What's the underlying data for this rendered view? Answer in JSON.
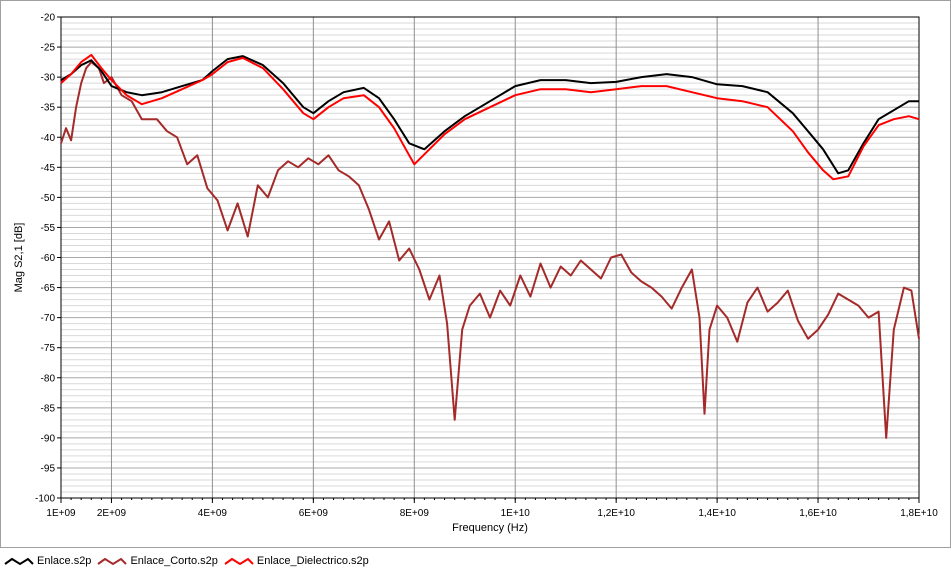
{
  "chart_data": {
    "type": "line",
    "title": "",
    "xlabel": "Frequency (Hz)",
    "ylabel": "Mag S2,1 [dB]",
    "xlim": [
      1000000000,
      18000000000
    ],
    "ylim": [
      -100,
      -20
    ],
    "grid": true,
    "legend_position": "bottom-left",
    "x_ticks": [
      {
        "value": 1000000000,
        "label": "1E+09"
      },
      {
        "value": 2000000000,
        "label": "2E+09"
      },
      {
        "value": 4000000000,
        "label": "4E+09"
      },
      {
        "value": 6000000000,
        "label": "6E+09"
      },
      {
        "value": 8000000000,
        "label": "8E+09"
      },
      {
        "value": 10000000000,
        "label": "1E+10"
      },
      {
        "value": 12000000000,
        "label": "1,2E+10"
      },
      {
        "value": 14000000000,
        "label": "1,4E+10"
      },
      {
        "value": 16000000000,
        "label": "1,6E+10"
      },
      {
        "value": 18000000000,
        "label": "1,8E+10"
      }
    ],
    "y_ticks": [
      {
        "value": -20,
        "label": "-20"
      },
      {
        "value": -25,
        "label": "-25"
      },
      {
        "value": -30,
        "label": "-30"
      },
      {
        "value": -35,
        "label": "-35"
      },
      {
        "value": -40,
        "label": "-40"
      },
      {
        "value": -45,
        "label": "-45"
      },
      {
        "value": -50,
        "label": "-50"
      },
      {
        "value": -55,
        "label": "-55"
      },
      {
        "value": -60,
        "label": "-60"
      },
      {
        "value": -65,
        "label": "-65"
      },
      {
        "value": -70,
        "label": "-70"
      },
      {
        "value": -75,
        "label": "-75"
      },
      {
        "value": -80,
        "label": "-80"
      },
      {
        "value": -85,
        "label": "-85"
      },
      {
        "value": -90,
        "label": "-90"
      },
      {
        "value": -95,
        "label": "-95"
      },
      {
        "value": -100,
        "label": "-100"
      }
    ],
    "series": [
      {
        "name": "Enlace.s2p",
        "color": "#000000",
        "points": [
          [
            1000000000.0,
            -30.5
          ],
          [
            1200000000.0,
            -29.5
          ],
          [
            1400000000.0,
            -28.0
          ],
          [
            1600000000.0,
            -27.2
          ],
          [
            1800000000.0,
            -29.0
          ],
          [
            2000000000.0,
            -31.5
          ],
          [
            2300000000.0,
            -32.5
          ],
          [
            2600000000.0,
            -33.0
          ],
          [
            3000000000.0,
            -32.5
          ],
          [
            3400000000.0,
            -31.5
          ],
          [
            3800000000.0,
            -30.5
          ],
          [
            4000000000.0,
            -29.0
          ],
          [
            4300000000.0,
            -27.0
          ],
          [
            4600000000.0,
            -26.5
          ],
          [
            5000000000.0,
            -28.0
          ],
          [
            5400000000.0,
            -31.0
          ],
          [
            5800000000.0,
            -35.0
          ],
          [
            6000000000.0,
            -36.0
          ],
          [
            6300000000.0,
            -34.0
          ],
          [
            6600000000.0,
            -32.5
          ],
          [
            7000000000.0,
            -31.8
          ],
          [
            7300000000.0,
            -33.5
          ],
          [
            7600000000.0,
            -37.0
          ],
          [
            7900000000.0,
            -41.0
          ],
          [
            8200000000.0,
            -42.0
          ],
          [
            8600000000.0,
            -39.0
          ],
          [
            9000000000.0,
            -36.5
          ],
          [
            9500000000.0,
            -34.0
          ],
          [
            10000000000.0,
            -31.5
          ],
          [
            10500000000.0,
            -30.5
          ],
          [
            11000000000.0,
            -30.5
          ],
          [
            11500000000.0,
            -31.0
          ],
          [
            12000000000.0,
            -30.8
          ],
          [
            12500000000.0,
            -30.0
          ],
          [
            13000000000.0,
            -29.5
          ],
          [
            13500000000.0,
            -30.0
          ],
          [
            14000000000.0,
            -31.2
          ],
          [
            14500000000.0,
            -31.5
          ],
          [
            15000000000.0,
            -32.5
          ],
          [
            15500000000.0,
            -36.0
          ],
          [
            15800000000.0,
            -39.0
          ],
          [
            16100000000.0,
            -42.0
          ],
          [
            16400000000.0,
            -46.0
          ],
          [
            16600000000.0,
            -45.5
          ],
          [
            16900000000.0,
            -41.0
          ],
          [
            17200000000.0,
            -37.0
          ],
          [
            17500000000.0,
            -35.5
          ],
          [
            17800000000.0,
            -34.0
          ],
          [
            18000000000.0,
            -34.0
          ]
        ]
      },
      {
        "name": "Enlace_Corto.s2p",
        "color": "#a52a2a",
        "points": [
          [
            1000000000.0,
            -41.0
          ],
          [
            1100000000.0,
            -38.5
          ],
          [
            1200000000.0,
            -40.5
          ],
          [
            1300000000.0,
            -35.0
          ],
          [
            1400000000.0,
            -31.0
          ],
          [
            1500000000.0,
            -28.5
          ],
          [
            1600000000.0,
            -27.5
          ],
          [
            1750000000.0,
            -28.5
          ],
          [
            1850000000.0,
            -31.0
          ],
          [
            2000000000.0,
            -30.0
          ],
          [
            2200000000.0,
            -33.0
          ],
          [
            2400000000.0,
            -34.0
          ],
          [
            2600000000.0,
            -37.0
          ],
          [
            2900000000.0,
            -37.0
          ],
          [
            3100000000.0,
            -39.0
          ],
          [
            3300000000.0,
            -40.0
          ],
          [
            3500000000.0,
            -44.5
          ],
          [
            3700000000.0,
            -43.0
          ],
          [
            3900000000.0,
            -48.5
          ],
          [
            4100000000.0,
            -50.5
          ],
          [
            4300000000.0,
            -55.5
          ],
          [
            4500000000.0,
            -51.0
          ],
          [
            4700000000.0,
            -56.5
          ],
          [
            4900000000.0,
            -48.0
          ],
          [
            5100000000.0,
            -50.0
          ],
          [
            5300000000.0,
            -45.5
          ],
          [
            5500000000.0,
            -44.0
          ],
          [
            5700000000.0,
            -45.0
          ],
          [
            5900000000.0,
            -43.5
          ],
          [
            6100000000.0,
            -44.5
          ],
          [
            6300000000.0,
            -43.0
          ],
          [
            6500000000.0,
            -45.5
          ],
          [
            6700000000.0,
            -46.5
          ],
          [
            6900000000.0,
            -48.0
          ],
          [
            7100000000.0,
            -52.0
          ],
          [
            7300000000.0,
            -57.0
          ],
          [
            7500000000.0,
            -54.0
          ],
          [
            7700000000.0,
            -60.5
          ],
          [
            7900000000.0,
            -58.5
          ],
          [
            8100000000.0,
            -62.0
          ],
          [
            8300000000.0,
            -67.0
          ],
          [
            8500000000.0,
            -63.0
          ],
          [
            8650000000.0,
            -71.0
          ],
          [
            8800000000.0,
            -87.0
          ],
          [
            8950000000.0,
            -72.0
          ],
          [
            9100000000.0,
            -68.0
          ],
          [
            9300000000.0,
            -66.0
          ],
          [
            9500000000.0,
            -70.0
          ],
          [
            9700000000.0,
            -65.5
          ],
          [
            9900000000.0,
            -68.0
          ],
          [
            10100000000.0,
            -63.0
          ],
          [
            10300000000.0,
            -66.5
          ],
          [
            10500000000.0,
            -61.0
          ],
          [
            10700000000.0,
            -65.0
          ],
          [
            10900000000.0,
            -61.5
          ],
          [
            11100000000.0,
            -63.0
          ],
          [
            11300000000.0,
            -60.5
          ],
          [
            11500000000.0,
            -62.0
          ],
          [
            11700000000.0,
            -63.5
          ],
          [
            11900000000.0,
            -60.0
          ],
          [
            12100000000.0,
            -59.5
          ],
          [
            12300000000.0,
            -62.5
          ],
          [
            12500000000.0,
            -64.0
          ],
          [
            12700000000.0,
            -65.0
          ],
          [
            12900000000.0,
            -66.5
          ],
          [
            13100000000.0,
            -68.5
          ],
          [
            13300000000.0,
            -65.0
          ],
          [
            13500000000.0,
            -62.0
          ],
          [
            13650000000.0,
            -70.0
          ],
          [
            13750000000.0,
            -86.0
          ],
          [
            13850000000.0,
            -72.0
          ],
          [
            14000000000.0,
            -68.0
          ],
          [
            14200000000.0,
            -70.0
          ],
          [
            14400000000.0,
            -74.0
          ],
          [
            14600000000.0,
            -67.5
          ],
          [
            14800000000.0,
            -65.0
          ],
          [
            15000000000.0,
            -69.0
          ],
          [
            15200000000.0,
            -67.5
          ],
          [
            15400000000.0,
            -65.5
          ],
          [
            15600000000.0,
            -70.5
          ],
          [
            15800000000.0,
            -73.5
          ],
          [
            16000000000.0,
            -72.0
          ],
          [
            16200000000.0,
            -69.5
          ],
          [
            16400000000.0,
            -66.0
          ],
          [
            16600000000.0,
            -67.0
          ],
          [
            16800000000.0,
            -68.0
          ],
          [
            17000000000.0,
            -70.0
          ],
          [
            17200000000.0,
            -69.0
          ],
          [
            17350000000.0,
            -90.0
          ],
          [
            17500000000.0,
            -72.0
          ],
          [
            17700000000.0,
            -65.0
          ],
          [
            17850000000.0,
            -65.5
          ],
          [
            18000000000.0,
            -73.5
          ]
        ]
      },
      {
        "name": "Enlace_Dielectrico.s2p",
        "color": "#ff0000",
        "points": [
          [
            1000000000.0,
            -31.0
          ],
          [
            1200000000.0,
            -29.5
          ],
          [
            1400000000.0,
            -27.5
          ],
          [
            1600000000.0,
            -26.3
          ],
          [
            1800000000.0,
            -28.5
          ],
          [
            2000000000.0,
            -30.5
          ],
          [
            2300000000.0,
            -33.0
          ],
          [
            2600000000.0,
            -34.5
          ],
          [
            3000000000.0,
            -33.5
          ],
          [
            3400000000.0,
            -32.0
          ],
          [
            3800000000.0,
            -30.5
          ],
          [
            4000000000.0,
            -29.5
          ],
          [
            4300000000.0,
            -27.5
          ],
          [
            4600000000.0,
            -26.8
          ],
          [
            5000000000.0,
            -28.5
          ],
          [
            5400000000.0,
            -32.0
          ],
          [
            5800000000.0,
            -36.0
          ],
          [
            6000000000.0,
            -37.0
          ],
          [
            6300000000.0,
            -35.0
          ],
          [
            6600000000.0,
            -33.5
          ],
          [
            7000000000.0,
            -33.0
          ],
          [
            7300000000.0,
            -35.0
          ],
          [
            7600000000.0,
            -38.5
          ],
          [
            7900000000.0,
            -43.0
          ],
          [
            8000000000.0,
            -44.5
          ],
          [
            8300000000.0,
            -42.0
          ],
          [
            8600000000.0,
            -39.5
          ],
          [
            9000000000.0,
            -37.0
          ],
          [
            9500000000.0,
            -35.0
          ],
          [
            10000000000.0,
            -33.0
          ],
          [
            10500000000.0,
            -32.0
          ],
          [
            11000000000.0,
            -32.0
          ],
          [
            11500000000.0,
            -32.5
          ],
          [
            12000000000.0,
            -32.0
          ],
          [
            12500000000.0,
            -31.5
          ],
          [
            13000000000.0,
            -31.5
          ],
          [
            13500000000.0,
            -32.5
          ],
          [
            14000000000.0,
            -33.5
          ],
          [
            14500000000.0,
            -34.0
          ],
          [
            15000000000.0,
            -35.0
          ],
          [
            15500000000.0,
            -39.0
          ],
          [
            15800000000.0,
            -42.5
          ],
          [
            16100000000.0,
            -45.5
          ],
          [
            16300000000.0,
            -47.0
          ],
          [
            16600000000.0,
            -46.5
          ],
          [
            16900000000.0,
            -41.5
          ],
          [
            17200000000.0,
            -38.0
          ],
          [
            17500000000.0,
            -37.0
          ],
          [
            17800000000.0,
            -36.5
          ],
          [
            18000000000.0,
            -37.0
          ]
        ]
      }
    ]
  }
}
